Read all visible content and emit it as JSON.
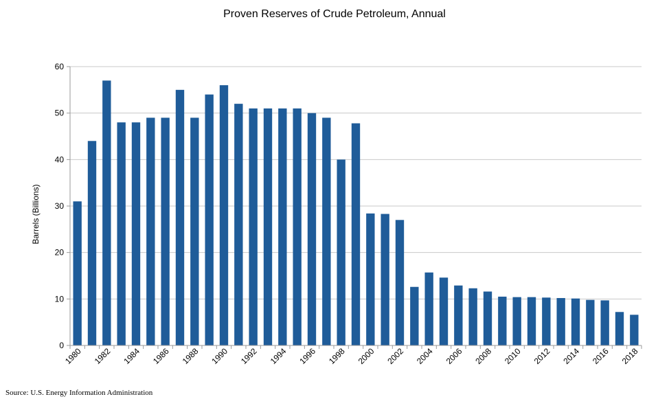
{
  "chart_data": {
    "type": "bar",
    "title": "Proven Reserves of Crude Petroleum, Annual",
    "xlabel": "",
    "ylabel": "Barrels (Billions)",
    "ylim": [
      0,
      60
    ],
    "yticks": [
      0,
      10,
      20,
      30,
      40,
      50,
      60
    ],
    "grid": true,
    "legend": "none",
    "bar_color": "#1f5c99",
    "categories": [
      "1980",
      "1981",
      "1982",
      "1983",
      "1984",
      "1985",
      "1986",
      "1987",
      "1988",
      "1989",
      "1990",
      "1991",
      "1992",
      "1993",
      "1994",
      "1995",
      "1996",
      "1997",
      "1998",
      "1999",
      "2000",
      "2001",
      "2002",
      "2003",
      "2004",
      "2005",
      "2006",
      "2007",
      "2008",
      "2009",
      "2010",
      "2011",
      "2012",
      "2013",
      "2014",
      "2015",
      "2016",
      "2017",
      "2018"
    ],
    "xtick_labels": [
      "1980",
      "1982",
      "1984",
      "1986",
      "1988",
      "1990",
      "1992",
      "1994",
      "1996",
      "1998",
      "2000",
      "2002",
      "2004",
      "2006",
      "2008",
      "2010",
      "2012",
      "2014",
      "2016",
      "2018"
    ],
    "values": [
      31,
      44,
      57,
      48,
      48,
      49,
      49,
      55,
      49,
      54,
      56,
      52,
      51,
      51,
      51,
      51,
      50,
      49,
      40,
      47.8,
      28.4,
      28.3,
      27,
      12.6,
      15.7,
      14.6,
      12.9,
      12.3,
      11.6,
      10.5,
      10.4,
      10.4,
      10.3,
      10.2,
      10.1,
      9.8,
      9.7,
      7.2,
      6.6
    ]
  },
  "footer": {
    "source": "Source: U.S. Energy Information Administration"
  }
}
